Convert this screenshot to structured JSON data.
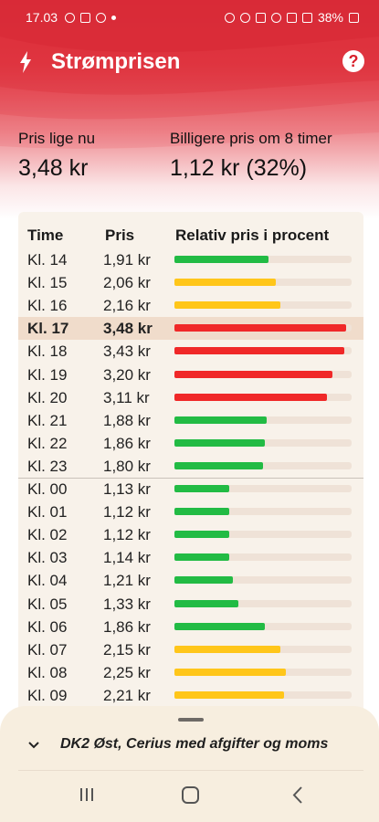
{
  "status_bar": {
    "time": "17.03",
    "battery": "38%"
  },
  "app": {
    "title": "Strømprisen",
    "help_icon": "help-icon",
    "bolt_icon": "bolt-icon"
  },
  "summary": {
    "now_label": "Pris lige nu",
    "now_value": "3,48 kr",
    "cheaper_label": "Billigere pris om 8 timer",
    "cheaper_value": "1,12 kr (32%)"
  },
  "table": {
    "headers": {
      "time": "Time",
      "price": "Pris",
      "relative": "Relativ pris i procent"
    },
    "rows": [
      {
        "time": "Kl. 14",
        "price": "1,91 kr",
        "pct": 0.53,
        "color": "#22bb44",
        "current": false
      },
      {
        "time": "Kl. 15",
        "price": "2,06 kr",
        "pct": 0.57,
        "color": "#ffc61a",
        "current": false
      },
      {
        "time": "Kl. 16",
        "price": "2,16 kr",
        "pct": 0.6,
        "color": "#ffc61a",
        "current": false
      },
      {
        "time": "Kl. 17",
        "price": "3,48 kr",
        "pct": 0.97,
        "color": "#f02828",
        "current": true
      },
      {
        "time": "Kl. 18",
        "price": "3,43 kr",
        "pct": 0.96,
        "color": "#f02828",
        "current": false
      },
      {
        "time": "Kl. 19",
        "price": "3,20 kr",
        "pct": 0.89,
        "color": "#f02828",
        "current": false
      },
      {
        "time": "Kl. 20",
        "price": "3,11 kr",
        "pct": 0.86,
        "color": "#f02828",
        "current": false
      },
      {
        "time": "Kl. 21",
        "price": "1,88 kr",
        "pct": 0.52,
        "color": "#22bb44",
        "current": false
      },
      {
        "time": "Kl. 22",
        "price": "1,86 kr",
        "pct": 0.51,
        "color": "#22bb44",
        "current": false
      },
      {
        "time": "Kl. 23",
        "price": "1,80 kr",
        "pct": 0.5,
        "color": "#22bb44",
        "current": false
      },
      {
        "time": "Kl. 00",
        "price": "1,13 kr",
        "pct": 0.31,
        "color": "#22bb44",
        "current": false
      },
      {
        "time": "Kl. 01",
        "price": "1,12 kr",
        "pct": 0.31,
        "color": "#22bb44",
        "current": false
      },
      {
        "time": "Kl. 02",
        "price": "1,12 kr",
        "pct": 0.31,
        "color": "#22bb44",
        "current": false
      },
      {
        "time": "Kl. 03",
        "price": "1,14 kr",
        "pct": 0.31,
        "color": "#22bb44",
        "current": false
      },
      {
        "time": "Kl. 04",
        "price": "1,21 kr",
        "pct": 0.33,
        "color": "#22bb44",
        "current": false
      },
      {
        "time": "Kl. 05",
        "price": "1,33 kr",
        "pct": 0.36,
        "color": "#22bb44",
        "current": false
      },
      {
        "time": "Kl. 06",
        "price": "1,86 kr",
        "pct": 0.51,
        "color": "#22bb44",
        "current": false
      },
      {
        "time": "Kl. 07",
        "price": "2,15 kr",
        "pct": 0.6,
        "color": "#ffc61a",
        "current": false
      },
      {
        "time": "Kl. 08",
        "price": "2,25 kr",
        "pct": 0.63,
        "color": "#ffc61a",
        "current": false
      },
      {
        "time": "Kl. 09",
        "price": "2,21 kr",
        "pct": 0.62,
        "color": "#ffc61a",
        "current": false
      }
    ]
  },
  "sheet": {
    "region": "DK2 Øst, Cerius med afgifter og moms",
    "chevron_icon": "chevron-down-icon"
  },
  "nav": {
    "recent_icon": "recent-apps-icon",
    "home_icon": "home-icon",
    "back_icon": "back-icon"
  }
}
